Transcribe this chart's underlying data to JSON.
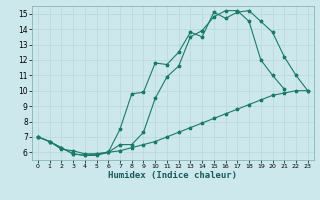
{
  "xlabel": "Humidex (Indice chaleur)",
  "bg_color": "#cce8ec",
  "grid_color": "#b0d8dc",
  "line_color": "#1a7a6a",
  "xlim": [
    -0.5,
    23.5
  ],
  "ylim": [
    5.5,
    15.5
  ],
  "xticks": [
    0,
    1,
    2,
    3,
    4,
    5,
    6,
    7,
    8,
    9,
    10,
    11,
    12,
    13,
    14,
    15,
    16,
    17,
    18,
    19,
    20,
    21,
    22,
    23
  ],
  "yticks": [
    6,
    7,
    8,
    9,
    10,
    11,
    12,
    13,
    14,
    15
  ],
  "line1_x": [
    0,
    1,
    2,
    3,
    4,
    5,
    6,
    7,
    8,
    9,
    10,
    11,
    12,
    13,
    14,
    15,
    16,
    17,
    18,
    19,
    20,
    21,
    22,
    23
  ],
  "line1_y": [
    7.0,
    6.7,
    6.3,
    5.9,
    5.8,
    5.8,
    6.0,
    7.5,
    9.8,
    9.9,
    11.8,
    11.7,
    12.5,
    13.8,
    13.5,
    15.1,
    14.7,
    15.1,
    15.2,
    14.5,
    13.8,
    12.2,
    11.0,
    10.0
  ],
  "line2_x": [
    0,
    1,
    2,
    3,
    4,
    5,
    6,
    7,
    8,
    9,
    10,
    11,
    12,
    13,
    14,
    15,
    16,
    17,
    18,
    19,
    20,
    21
  ],
  "line2_y": [
    7.0,
    6.7,
    6.3,
    5.9,
    5.8,
    5.9,
    6.0,
    6.5,
    6.5,
    7.3,
    9.5,
    10.9,
    11.6,
    13.5,
    13.9,
    14.8,
    15.2,
    15.2,
    14.5,
    12.0,
    11.0,
    10.1
  ],
  "line3_x": [
    0,
    1,
    2,
    3,
    4,
    5,
    6,
    7,
    8,
    9,
    10,
    11,
    12,
    13,
    14,
    15,
    16,
    17,
    18,
    19,
    20,
    21,
    22,
    23
  ],
  "line3_y": [
    7.0,
    6.7,
    6.2,
    6.1,
    5.9,
    5.9,
    6.0,
    6.1,
    6.3,
    6.5,
    6.7,
    7.0,
    7.3,
    7.6,
    7.9,
    8.2,
    8.5,
    8.8,
    9.1,
    9.4,
    9.7,
    9.85,
    10.0,
    10.0
  ]
}
